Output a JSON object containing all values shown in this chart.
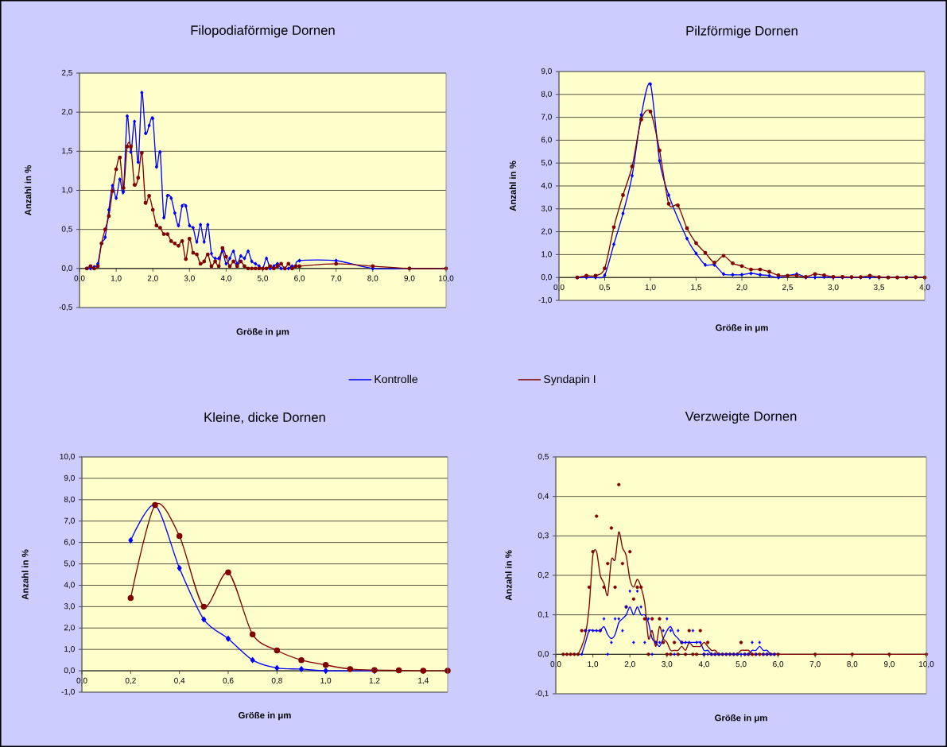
{
  "chart_data": [
    {
      "type": "line",
      "title": "Filopodiaförmige Dornen",
      "xlabel": "Größe in μm",
      "ylabel": "Anzahl in %",
      "grid": "y",
      "legend": "bottom",
      "xlim": [
        0,
        10
      ],
      "ylim": [
        -0.5,
        2.5
      ],
      "xticks": [
        {
          "value": 0,
          "label": "0,0"
        },
        {
          "value": 1,
          "label": "1,0"
        },
        {
          "value": 2,
          "label": "2,0"
        },
        {
          "value": 3,
          "label": "3,0"
        },
        {
          "value": 4,
          "label": "4,0"
        },
        {
          "value": 5,
          "label": "5,0"
        },
        {
          "value": 6,
          "label": "6,0"
        },
        {
          "value": 7,
          "label": "7,0"
        },
        {
          "value": 8,
          "label": "8,0"
        },
        {
          "value": 9,
          "label": "9,0"
        },
        {
          "value": 10,
          "label": "10,0"
        }
      ],
      "yticks": [
        {
          "value": -0.5,
          "label": "-0,5"
        },
        {
          "value": 0,
          "label": "0,0"
        },
        {
          "value": 0.5,
          "label": "0,5"
        },
        {
          "value": 1,
          "label": "1,0"
        },
        {
          "value": 1.5,
          "label": "1,5"
        },
        {
          "value": 2,
          "label": "2,0"
        },
        {
          "value": 2.5,
          "label": "2,5"
        }
      ],
      "x": [
        0.2,
        0.3,
        0.4,
        0.5,
        0.6,
        0.7,
        0.8,
        0.9,
        1.0,
        1.1,
        1.2,
        1.3,
        1.4,
        1.5,
        1.6,
        1.7,
        1.8,
        1.9,
        2.0,
        2.1,
        2.2,
        2.3,
        2.4,
        2.5,
        2.6,
        2.7,
        2.8,
        2.9,
        3.0,
        3.1,
        3.2,
        3.3,
        3.4,
        3.5,
        3.6,
        3.7,
        3.8,
        3.9,
        4.0,
        4.1,
        4.2,
        4.3,
        4.4,
        4.5,
        4.6,
        4.7,
        4.8,
        4.9,
        5.0,
        5.1,
        5.2,
        5.3,
        5.4,
        5.5,
        5.6,
        5.7,
        5.8,
        5.9,
        6.0,
        7,
        8,
        9,
        10
      ],
      "series": [
        {
          "name": "Kontrolle",
          "color": "#0000ff",
          "marker": "diamond",
          "values": [
            0,
            0,
            0.02,
            0.06,
            0.32,
            0.4,
            0.75,
            1.06,
            0.9,
            1.14,
            0.98,
            1.95,
            1.49,
            1.88,
            1.36,
            2.25,
            1.73,
            1.83,
            1.92,
            1.3,
            1.49,
            0.65,
            0.93,
            0.9,
            0.71,
            0.55,
            0.8,
            0.8,
            0.55,
            0.52,
            0.34,
            0.56,
            0.34,
            0.56,
            0.19,
            0.13,
            0.13,
            0.22,
            0.06,
            0.13,
            0.22,
            0.06,
            0.16,
            0.13,
            0.22,
            0.09,
            0.06,
            0.03,
            0,
            0.13,
            0,
            0.03,
            0.06,
            0,
            0,
            0,
            0.03,
            0.03,
            0.1,
            0.1,
            0,
            0,
            0
          ]
        },
        {
          "name": "Syndapin I",
          "color": "#800000",
          "marker": "circle",
          "values": [
            0,
            0.03,
            0,
            0.03,
            0.32,
            0.5,
            0.67,
            0.99,
            1.27,
            1.42,
            1.03,
            1.56,
            1.56,
            1.07,
            1.16,
            1.48,
            0.84,
            0.93,
            0.75,
            0.55,
            0.52,
            0.44,
            0.44,
            0.35,
            0.32,
            0.29,
            0.35,
            0.12,
            0.38,
            0.2,
            0.18,
            0.06,
            0.09,
            0.18,
            0.03,
            0.09,
            0.03,
            0.26,
            0.15,
            0.03,
            0.09,
            0.03,
            0.09,
            0.03,
            0,
            0,
            0,
            0,
            0,
            0,
            0.03,
            0,
            0.03,
            0.06,
            0,
            0.06,
            0,
            0.03,
            0.03,
            0.06,
            0.03,
            0,
            0
          ]
        }
      ]
    },
    {
      "type": "line",
      "title": "Pilzförmige Dornen",
      "xlabel": "Größe in μm",
      "ylabel": "Anzahl in %",
      "grid": "y",
      "xlim": [
        0,
        4
      ],
      "ylim": [
        -1,
        9
      ],
      "xticks": [
        {
          "value": 0,
          "label": "0,0"
        },
        {
          "value": 0.5,
          "label": "0,5"
        },
        {
          "value": 1,
          "label": "1,0"
        },
        {
          "value": 1.5,
          "label": "1,5"
        },
        {
          "value": 2,
          "label": "2,0"
        },
        {
          "value": 2.5,
          "label": "2,5"
        },
        {
          "value": 3,
          "label": "3,0"
        },
        {
          "value": 3.5,
          "label": "3,5"
        },
        {
          "value": 4,
          "label": "4,0"
        }
      ],
      "yticks": [
        {
          "value": -1,
          "label": "-1,0"
        },
        {
          "value": 0,
          "label": "0,0"
        },
        {
          "value": 1,
          "label": "1,0"
        },
        {
          "value": 2,
          "label": "2,0"
        },
        {
          "value": 3,
          "label": "3,0"
        },
        {
          "value": 4,
          "label": "4,0"
        },
        {
          "value": 5,
          "label": "5,0"
        },
        {
          "value": 6,
          "label": "6,0"
        },
        {
          "value": 7,
          "label": "7,0"
        },
        {
          "value": 8,
          "label": "8,0"
        },
        {
          "value": 9,
          "label": "9,0"
        }
      ],
      "x": [
        0.2,
        0.3,
        0.4,
        0.5,
        0.6,
        0.7,
        0.8,
        0.9,
        1.0,
        1.1,
        1.2,
        1.3,
        1.4,
        1.5,
        1.6,
        1.7,
        1.8,
        1.9,
        2.0,
        2.1,
        2.2,
        2.3,
        2.4,
        2.5,
        2.6,
        2.7,
        2.8,
        2.9,
        3.0,
        3.1,
        3.2,
        3.3,
        3.4,
        3.5,
        3.6,
        3.7,
        3.8,
        3.9,
        4.0
      ],
      "series": [
        {
          "color": "#0000ff",
          "marker": "diamond",
          "values": [
            0,
            0,
            0,
            0.1,
            1.45,
            2.8,
            4.45,
            7.1,
            8.45,
            5.1,
            3.6,
            null,
            1.7,
            1.05,
            0.55,
            0.55,
            0.15,
            0.12,
            0.12,
            0.18,
            0.12,
            0.08,
            0,
            null,
            0.15,
            0,
            0,
            0.02,
            0,
            0,
            0,
            0,
            0,
            0,
            0,
            0,
            0,
            0,
            0
          ]
        },
        {
          "color": "#800000",
          "marker": "circle",
          "values": [
            0,
            0.08,
            0.08,
            0.4,
            2.2,
            3.6,
            4.85,
            6.9,
            7.25,
            5.55,
            3.22,
            3.15,
            2.15,
            1.5,
            1.08,
            0.65,
            0.95,
            0.62,
            0.5,
            0.35,
            0.35,
            0.25,
            0.1,
            0.08,
            0.08,
            0.03,
            0.15,
            0.1,
            0.03,
            0.03,
            0.02,
            0.02,
            0.08,
            0.02,
            0,
            0,
            0,
            0.02,
            0
          ]
        }
      ]
    },
    {
      "type": "line",
      "title": "Kleine,  dicke  Dornen",
      "xlabel": "Größe in μm",
      "ylabel": "Anzahl in %",
      "grid": "y",
      "xlim": [
        0,
        1.5
      ],
      "ylim": [
        -1,
        10
      ],
      "xticks": [
        {
          "value": 0,
          "label": "0,0"
        },
        {
          "value": 0.2,
          "label": "0,2"
        },
        {
          "value": 0.4,
          "label": "0,4"
        },
        {
          "value": 0.6,
          "label": "0,6"
        },
        {
          "value": 0.8,
          "label": "0,8"
        },
        {
          "value": 1.0,
          "label": "1,0"
        },
        {
          "value": 1.2,
          "label": "1,2"
        },
        {
          "value": 1.4,
          "label": "1,4"
        }
      ],
      "yticks": [
        {
          "value": -1,
          "label": "-1,0"
        },
        {
          "value": 0,
          "label": "0,0"
        },
        {
          "value": 1,
          "label": "1,0"
        },
        {
          "value": 2,
          "label": "2,0"
        },
        {
          "value": 3,
          "label": "3,0"
        },
        {
          "value": 4,
          "label": "4,0"
        },
        {
          "value": 5,
          "label": "5,0"
        },
        {
          "value": 6,
          "label": "6,0"
        },
        {
          "value": 7,
          "label": "7,0"
        },
        {
          "value": 8,
          "label": "8,0"
        },
        {
          "value": 9,
          "label": "9,0"
        },
        {
          "value": 10,
          "label": "10,0"
        }
      ],
      "series": [
        {
          "color": "#0000ff",
          "marker": "diamond",
          "x": [
            0.2,
            0.3,
            0.4,
            0.5,
            0.6,
            0.7,
            0.8,
            0.9,
            1.0,
            1.1,
            1.2
          ],
          "values": [
            6.1,
            7.75,
            4.8,
            2.4,
            1.5,
            0.5,
            0.13,
            0.08,
            0,
            null,
            0
          ]
        },
        {
          "color": "#800000",
          "marker": "circle",
          "x": [
            0.2,
            0.3,
            0.4,
            0.5,
            0.6,
            0.7,
            0.8,
            0.9,
            1.0,
            1.1,
            1.2,
            1.3,
            1.4,
            1.5
          ],
          "values": [
            3.4,
            7.75,
            6.3,
            3.0,
            4.6,
            1.7,
            0.95,
            0.5,
            0.27,
            0.08,
            0.03,
            0.02,
            0,
            0
          ]
        }
      ]
    },
    {
      "type": "line",
      "title": "Verzweigte  Dornen",
      "xlabel": "Größe in μm",
      "ylabel": "Anzahl in %",
      "grid": "y",
      "xlim": [
        0,
        10
      ],
      "ylim": [
        -0.1,
        0.5
      ],
      "xticks": [
        {
          "value": 0,
          "label": "0,0"
        },
        {
          "value": 1,
          "label": "1,0"
        },
        {
          "value": 2,
          "label": "2,0"
        },
        {
          "value": 3,
          "label": "3,0"
        },
        {
          "value": 4,
          "label": "4,0"
        },
        {
          "value": 5,
          "label": "5,0"
        },
        {
          "value": 6,
          "label": "6,0"
        },
        {
          "value": 7,
          "label": "7,0"
        },
        {
          "value": 8,
          "label": "8,0"
        },
        {
          "value": 9,
          "label": "9,0"
        },
        {
          "value": 10,
          "label": "10,0"
        }
      ],
      "yticks": [
        {
          "value": -0.1,
          "label": "-0,1"
        },
        {
          "value": 0,
          "label": "0,0"
        },
        {
          "value": 0.1,
          "label": "0,1"
        },
        {
          "value": 0.2,
          "label": "0,2"
        },
        {
          "value": 0.3,
          "label": "0,3"
        },
        {
          "value": 0.4,
          "label": "0,4"
        },
        {
          "value": 0.5,
          "label": "0,5"
        }
      ],
      "series": [
        {
          "type": "scatter",
          "color": "#800000",
          "marker": "circle",
          "x": [
            0.2,
            0.3,
            0.4,
            0.5,
            0.6,
            0.7,
            0.8,
            0.9,
            1.0,
            1.1,
            1.2,
            1.3,
            1.4,
            1.5,
            1.6,
            1.7,
            1.8,
            1.9,
            2.0,
            2.1,
            2.2,
            2.3,
            2.4,
            2.5,
            2.6,
            2.7,
            2.8,
            2.9,
            3.0,
            3.1,
            3.2,
            3.3,
            3.4,
            3.5,
            3.6,
            3.7,
            3.8,
            3.9,
            4.0,
            4.1,
            4.2,
            4.3,
            4.4,
            4.5,
            4.6,
            4.7,
            4.8,
            4.9,
            5.0,
            5.1,
            5.2,
            5.3,
            5.4,
            5.5,
            5.6,
            5.7,
            5.8,
            5.9,
            6.0,
            7,
            8,
            9,
            10
          ],
          "values": [
            0,
            0,
            0,
            0,
            0,
            0.06,
            0.06,
            0.17,
            0.26,
            0.35,
            0.06,
            0.17,
            0.23,
            0.32,
            0.17,
            0.43,
            0.23,
            0.12,
            0.26,
            0.14,
            0.17,
            0.17,
            0.09,
            0,
            0.09,
            0.03,
            0.09,
            0.03,
            0,
            0,
            0.03,
            0,
            0.03,
            0,
            0.06,
            0,
            0,
            0.06,
            0,
            0.03,
            0,
            0,
            0,
            0,
            0,
            0,
            0,
            0,
            0.03,
            0,
            0,
            0,
            0,
            0,
            0,
            0,
            0,
            0,
            0,
            0,
            0,
            0,
            0
          ]
        },
        {
          "type": "scatter",
          "color": "#0000ff",
          "marker": "diamond",
          "x": [
            0.7,
            0.8,
            0.9,
            1.0,
            1.1,
            1.2,
            1.3,
            1.4,
            1.5,
            1.6,
            1.7,
            1.8,
            1.9,
            2.0,
            2.1,
            2.2,
            2.3,
            2.4,
            2.5,
            2.6,
            2.7,
            2.8,
            2.9,
            3.0,
            3.1,
            3.2,
            3.3,
            3.4,
            3.5,
            3.6,
            3.7,
            3.8,
            3.9,
            4.0,
            4.1,
            4.2,
            4.3,
            4.4,
            4.5,
            4.6,
            4.7,
            4.8,
            4.9,
            5.0,
            5.1,
            5.2,
            5.3,
            5.4,
            5.5,
            5.6,
            5.7,
            5.8,
            5.9
          ],
          "values": [
            0,
            0.06,
            0.06,
            0.06,
            0.06,
            0.06,
            0.09,
            0,
            0.03,
            0.09,
            0.09,
            0.06,
            0.12,
            0.16,
            0.03,
            0.16,
            0.12,
            0.03,
            0.09,
            0,
            0.03,
            0.03,
            0.06,
            0.09,
            0.06,
            0,
            0.06,
            0.03,
            0.03,
            0.03,
            0.06,
            0.03,
            0.03,
            0,
            0,
            0,
            0,
            0,
            0,
            0,
            0,
            0,
            0,
            0,
            0,
            0,
            0.03,
            0,
            0.03,
            0,
            0,
            0,
            0
          ]
        },
        {
          "type": "line",
          "color": "#0000ff",
          "x": [
            0.7,
            0.8,
            0.9,
            1.0,
            1.1,
            1.2,
            1.3,
            1.4,
            1.5,
            1.6,
            1.7,
            1.8,
            1.9,
            2.0,
            2.1,
            2.2,
            2.3,
            2.4,
            2.5,
            2.6,
            2.7,
            2.8,
            2.9,
            3.0,
            3.1,
            3.2,
            3.3,
            3.4,
            3.5,
            3.6,
            3.7,
            3.8,
            3.9,
            4.0,
            4.1,
            4.2,
            4.3,
            4.4,
            4.5,
            4.6,
            4.7,
            4.8,
            4.9,
            5.0,
            5.1,
            5.2,
            5.3,
            5.4,
            5.5,
            5.6,
            5.7,
            5.8,
            5.9,
            6.0
          ],
          "values": [
            0,
            0.03,
            0.06,
            0.06,
            0.06,
            0.06,
            0.07,
            0.05,
            0.04,
            0.05,
            0.08,
            0.09,
            0.1,
            0.12,
            0.1,
            0.12,
            0.1,
            0.1,
            0.08,
            0.04,
            0.03,
            0.02,
            0.04,
            0.06,
            0.07,
            0.05,
            0.04,
            0.03,
            0.03,
            0.03,
            0.03,
            0.03,
            0.03,
            0.01,
            0.01,
            0,
            0,
            0,
            0,
            0,
            0,
            0,
            0,
            0,
            0,
            0,
            0.01,
            0.01,
            0.02,
            0.01,
            0.01,
            0,
            0,
            0
          ]
        },
        {
          "type": "line",
          "color": "#800000",
          "x": [
            0.6,
            0.7,
            0.8,
            0.9,
            1.0,
            1.1,
            1.2,
            1.3,
            1.4,
            1.5,
            1.6,
            1.7,
            1.8,
            1.9,
            2.0,
            2.1,
            2.2,
            2.3,
            2.4,
            2.5,
            2.6,
            2.7,
            2.8,
            2.9,
            3.0,
            3.1,
            3.2,
            3.3,
            3.4,
            3.5,
            3.6,
            3.7,
            3.8,
            3.9,
            4.0,
            4.1,
            4.2,
            4.3,
            4.4,
            4.5,
            4.6,
            4.7,
            4.8,
            4.9,
            5.0,
            5.1,
            5.2,
            5.3,
            5.4,
            5.5,
            5.6,
            5.7,
            5.8,
            5.9,
            6.0,
            10
          ],
          "values": [
            0,
            0.02,
            0.05,
            0.12,
            0.25,
            0.26,
            0.2,
            0.18,
            0.15,
            0.24,
            0.24,
            0.31,
            0.27,
            0.25,
            0.19,
            0.17,
            0.19,
            0.17,
            0.13,
            0.04,
            0.06,
            0.02,
            0.07,
            0.04,
            0.03,
            0.01,
            0.01,
            0.01,
            0.02,
            0.01,
            0.03,
            0.02,
            0.02,
            0.02,
            0.03,
            0.02,
            0.01,
            0.01,
            0,
            0,
            0,
            0,
            0,
            0,
            0.01,
            0.01,
            0.01,
            0,
            0,
            0,
            0,
            0,
            0,
            0,
            0,
            0
          ]
        }
      ]
    }
  ]
}
